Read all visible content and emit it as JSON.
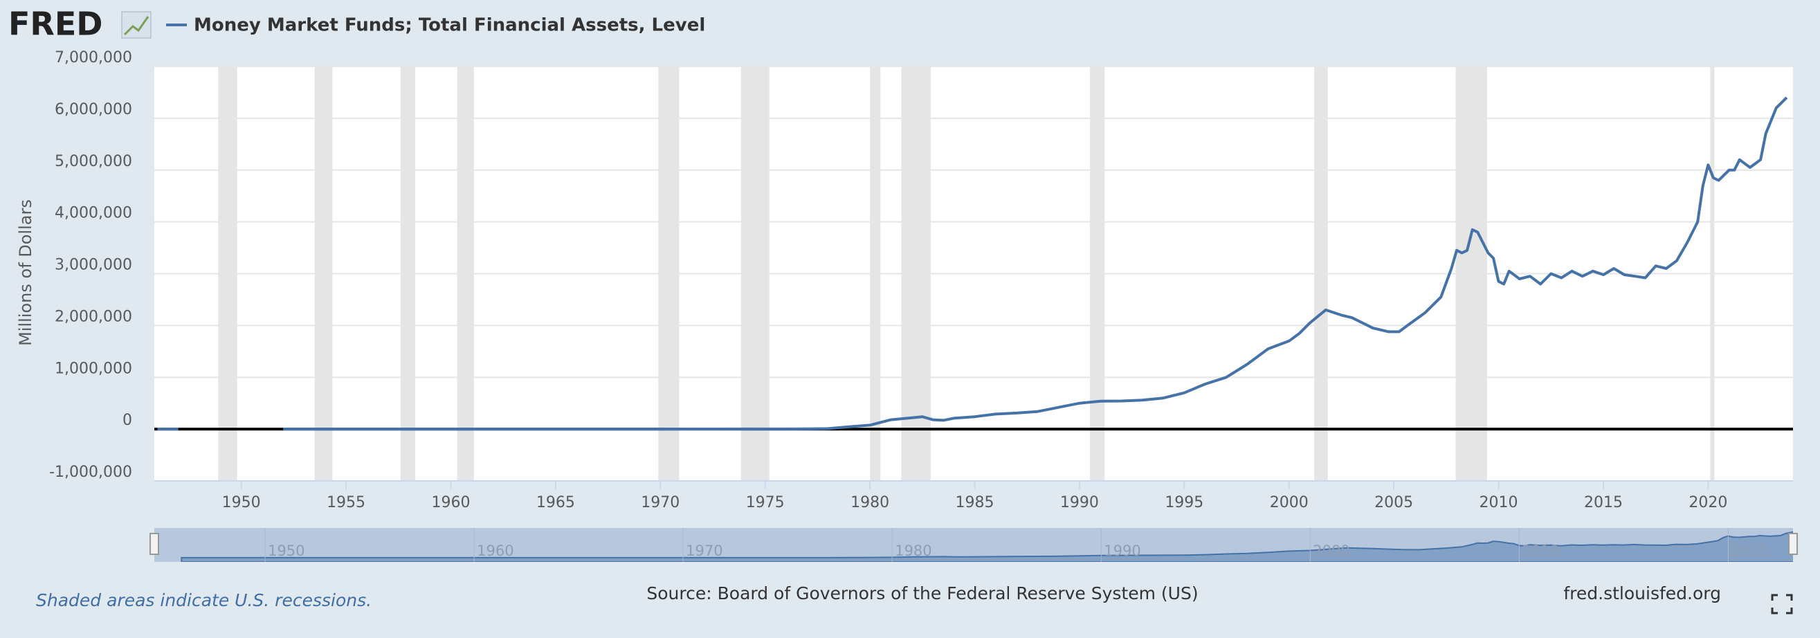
{
  "logo": "FRED",
  "chart_data": {
    "type": "line",
    "source": "Source: Board of Governors of the Federal Reserve System (US)",
    "note": "Shaded areas indicate U.S. recessions.",
    "site": "fred.stlouisfed.org",
    "ylabel": "Millions of Dollars",
    "x": [
      1946.0,
      1947.0,
      1947.25,
      1952.0,
      1960,
      1970,
      1975,
      1977,
      1978,
      1979,
      1980,
      1981,
      1982,
      1982.5,
      1983,
      1983.5,
      1984,
      1985,
      1986,
      1987,
      1988,
      1989,
      1990,
      1991,
      1992,
      1993,
      1994,
      1995,
      1996,
      1997,
      1998,
      1999,
      2000,
      2000.5,
      2001,
      2001.75,
      2002.5,
      2003,
      2004,
      2004.75,
      2005.25,
      2005.75,
      2006.5,
      2007.25,
      2007.75,
      2008,
      2008.25,
      2008.5,
      2008.75,
      2009,
      2009.5,
      2009.75,
      2010,
      2010.25,
      2010.5,
      2011,
      2011.5,
      2012,
      2012.5,
      2013,
      2013.5,
      2014,
      2014.5,
      2015,
      2015.5,
      2016,
      2016.5,
      2017,
      2017.5,
      2018,
      2018.5,
      2019,
      2019.5,
      2019.75,
      2020,
      2020.25,
      2020.5,
      2021,
      2021.25,
      2021.5,
      2022,
      2022.5,
      2022.75,
      2023.25,
      2023.75
    ],
    "series": [
      {
        "name": "Money Market Funds; Total Financial Assets, Level",
        "color": "#4572a7",
        "values": [
          0,
          0,
          null,
          0,
          0,
          0,
          3000,
          4000,
          10000,
          45000,
          76000,
          180000,
          220000,
          240000,
          180000,
          170000,
          210000,
          240000,
          290000,
          310000,
          340000,
          420000,
          500000,
          540000,
          543000,
          560000,
          600000,
          700000,
          870000,
          1000000,
          1250000,
          1550000,
          1700000,
          1850000,
          2050000,
          2300000,
          2200000,
          2150000,
          1950000,
          1880000,
          1880000,
          2030000,
          2250000,
          2550000,
          3100000,
          3450000,
          3400000,
          3450000,
          3850000,
          3800000,
          3400000,
          3300000,
          2850000,
          2800000,
          3050000,
          2900000,
          2950000,
          2800000,
          3000000,
          2920000,
          3050000,
          2950000,
          3050000,
          2980000,
          3100000,
          2980000,
          2950000,
          2920000,
          3150000,
          3100000,
          3250000,
          3600000,
          4000000,
          4700000,
          5100000,
          4850000,
          4800000,
          5000000,
          5000000,
          5200000,
          5050000,
          5200000,
          5700000,
          6200000,
          6400000
        ]
      }
    ],
    "xlim": [
      1945.85,
      2024.05
    ],
    "xticks": [
      1950,
      1955,
      1960,
      1965,
      1970,
      1975,
      1980,
      1985,
      1990,
      1995,
      2000,
      2005,
      2010,
      2015,
      2020
    ],
    "ylim": [
      -1000000,
      7000000
    ],
    "yticks": [
      {
        "value": -1000000,
        "label": "-1,000,000"
      },
      0,
      {
        "value": 1000000,
        "label": "1,000,000"
      },
      {
        "value": 2000000,
        "label": "2,000,000"
      },
      {
        "value": 3000000,
        "label": "3,000,000"
      },
      {
        "value": 4000000,
        "label": "4,000,000"
      },
      {
        "value": 5000000,
        "label": "5,000,000"
      },
      {
        "value": 6000000,
        "label": "6,000,000"
      },
      {
        "value": 7000000,
        "label": "7,000,000"
      }
    ],
    "grid": true,
    "recessions": [
      [
        1948.9,
        1949.8
      ],
      [
        1953.5,
        1954.35
      ],
      [
        1957.6,
        1958.3
      ],
      [
        1960.3,
        1961.1
      ],
      [
        1969.9,
        1970.9
      ],
      [
        1973.85,
        1975.2
      ],
      [
        1980.0,
        1980.5
      ],
      [
        1981.5,
        1982.9
      ],
      [
        1990.5,
        1991.2
      ],
      [
        2001.2,
        2001.85
      ],
      [
        2007.95,
        2009.45
      ],
      [
        2020.1,
        2020.3
      ]
    ],
    "navigator_xlim": [
      1944.7,
      2023.1
    ],
    "navigator_xticks": [
      1950,
      1960,
      1970,
      1980,
      1990,
      2000,
      2010,
      2020
    ]
  }
}
